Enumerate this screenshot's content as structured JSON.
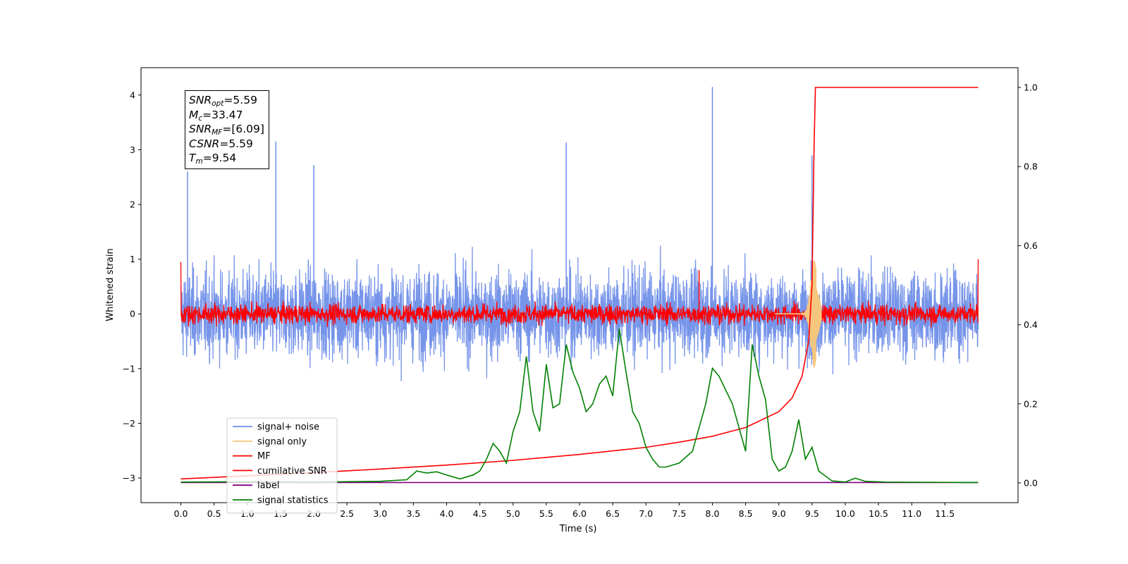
{
  "chart_data": {
    "type": "line",
    "title": "",
    "xlabel": "Time (s)",
    "ylabel": "Whitened strain",
    "y2label": "",
    "xlim": [
      -0.6,
      12.6
    ],
    "ylim": [
      -3.45,
      4.5
    ],
    "y2lim": [
      -0.05,
      1.05
    ],
    "x_ticks": [
      "0.0",
      "0.5",
      "1.0",
      "1.5",
      "2.0",
      "2.5",
      "3.0",
      "3.5",
      "4.0",
      "4.5",
      "5.0",
      "5.5",
      "6.0",
      "6.5",
      "7.0",
      "7.5",
      "8.0",
      "8.5",
      "9.0",
      "9.5",
      "10.0",
      "10.5",
      "11.0",
      "11.5"
    ],
    "y_ticks": [
      "4",
      "3",
      "2",
      "1",
      "0",
      "−1",
      "−2",
      "−3"
    ],
    "y2_ticks": [
      "1.0",
      "0.8",
      "0.6",
      "0.4",
      "0.2",
      "0.0"
    ],
    "legend_position": "lower-left",
    "series": [
      {
        "name": "signal+ noise",
        "axis": "left",
        "color": "#6f8ee8",
        "description_values": "noise ±2, max 4.15 at 8.0",
        "peaks": [
          [
            0.1,
            2.6
          ],
          [
            1.43,
            3.15
          ],
          [
            2.0,
            2.72
          ],
          [
            5.8,
            3.13
          ],
          [
            8.0,
            4.15
          ],
          [
            9.5,
            2.9
          ]
        ]
      },
      {
        "name": "signal only",
        "axis": "left",
        "color": "#f5c77e",
        "burst_center": 9.54
      },
      {
        "name": "MF",
        "axis": "left",
        "color": "#ff0000",
        "amplitude": 0.25
      },
      {
        "name": "cumilative SNR",
        "axis": "right",
        "color": "#ff0000",
        "points": [
          [
            0.0,
            0.01
          ],
          [
            1.0,
            0.018
          ],
          [
            2.0,
            0.026
          ],
          [
            3.0,
            0.035
          ],
          [
            4.0,
            0.045
          ],
          [
            5.0,
            0.057
          ],
          [
            6.0,
            0.072
          ],
          [
            7.0,
            0.09
          ],
          [
            7.5,
            0.103
          ],
          [
            8.0,
            0.118
          ],
          [
            8.5,
            0.14
          ],
          [
            9.0,
            0.18
          ],
          [
            9.2,
            0.215
          ],
          [
            9.35,
            0.27
          ],
          [
            9.45,
            0.36
          ],
          [
            9.5,
            0.5
          ],
          [
            9.53,
            0.85
          ],
          [
            9.55,
            1.0
          ],
          [
            12.0,
            1.0
          ]
        ]
      },
      {
        "name": "label",
        "axis": "right",
        "color": "#800080",
        "points": [
          [
            0.0,
            0.001
          ],
          [
            12.0,
            0.001
          ]
        ]
      },
      {
        "name": "signal statistics",
        "axis": "right",
        "color": "#008000",
        "points": [
          [
            0.0,
            0.002
          ],
          [
            1.0,
            0.003
          ],
          [
            2.0,
            0.002
          ],
          [
            3.0,
            0.004
          ],
          [
            3.4,
            0.008
          ],
          [
            3.55,
            0.03
          ],
          [
            3.7,
            0.025
          ],
          [
            3.85,
            0.028
          ],
          [
            4.0,
            0.02
          ],
          [
            4.2,
            0.01
          ],
          [
            4.4,
            0.02
          ],
          [
            4.5,
            0.03
          ],
          [
            4.6,
            0.06
          ],
          [
            4.7,
            0.1
          ],
          [
            4.8,
            0.08
          ],
          [
            4.9,
            0.05
          ],
          [
            5.0,
            0.13
          ],
          [
            5.1,
            0.18
          ],
          [
            5.2,
            0.32
          ],
          [
            5.3,
            0.18
          ],
          [
            5.4,
            0.13
          ],
          [
            5.5,
            0.3
          ],
          [
            5.6,
            0.19
          ],
          [
            5.7,
            0.2
          ],
          [
            5.8,
            0.35
          ],
          [
            5.9,
            0.28
          ],
          [
            6.0,
            0.24
          ],
          [
            6.1,
            0.18
          ],
          [
            6.2,
            0.2
          ],
          [
            6.3,
            0.25
          ],
          [
            6.4,
            0.27
          ],
          [
            6.5,
            0.22
          ],
          [
            6.6,
            0.39
          ],
          [
            6.7,
            0.28
          ],
          [
            6.8,
            0.18
          ],
          [
            6.9,
            0.15
          ],
          [
            7.0,
            0.09
          ],
          [
            7.1,
            0.06
          ],
          [
            7.2,
            0.04
          ],
          [
            7.3,
            0.04
          ],
          [
            7.5,
            0.05
          ],
          [
            7.7,
            0.08
          ],
          [
            7.9,
            0.2
          ],
          [
            8.0,
            0.29
          ],
          [
            8.1,
            0.27
          ],
          [
            8.3,
            0.2
          ],
          [
            8.5,
            0.08
          ],
          [
            8.6,
            0.35
          ],
          [
            8.7,
            0.27
          ],
          [
            8.8,
            0.21
          ],
          [
            8.9,
            0.06
          ],
          [
            9.0,
            0.03
          ],
          [
            9.1,
            0.04
          ],
          [
            9.2,
            0.08
          ],
          [
            9.3,
            0.16
          ],
          [
            9.4,
            0.06
          ],
          [
            9.5,
            0.09
          ],
          [
            9.6,
            0.03
          ],
          [
            9.8,
            0.005
          ],
          [
            10.0,
            0.002
          ],
          [
            10.15,
            0.012
          ],
          [
            10.3,
            0.004
          ],
          [
            10.6,
            0.002
          ],
          [
            12.0,
            0.001
          ]
        ]
      }
    ],
    "annotation": {
      "lines": [
        {
          "base": "SNR",
          "sub": "opt",
          "value": "=5.59"
        },
        {
          "base": "M",
          "sub": "c",
          "value": "=33.47"
        },
        {
          "base": "SNR",
          "sub": "MF",
          "value": "=[6.09]"
        },
        {
          "base": "CSNR",
          "sub": "",
          "value": "=5.59"
        },
        {
          "base": "T",
          "sub": "m",
          "value": "=9.54"
        }
      ]
    }
  }
}
